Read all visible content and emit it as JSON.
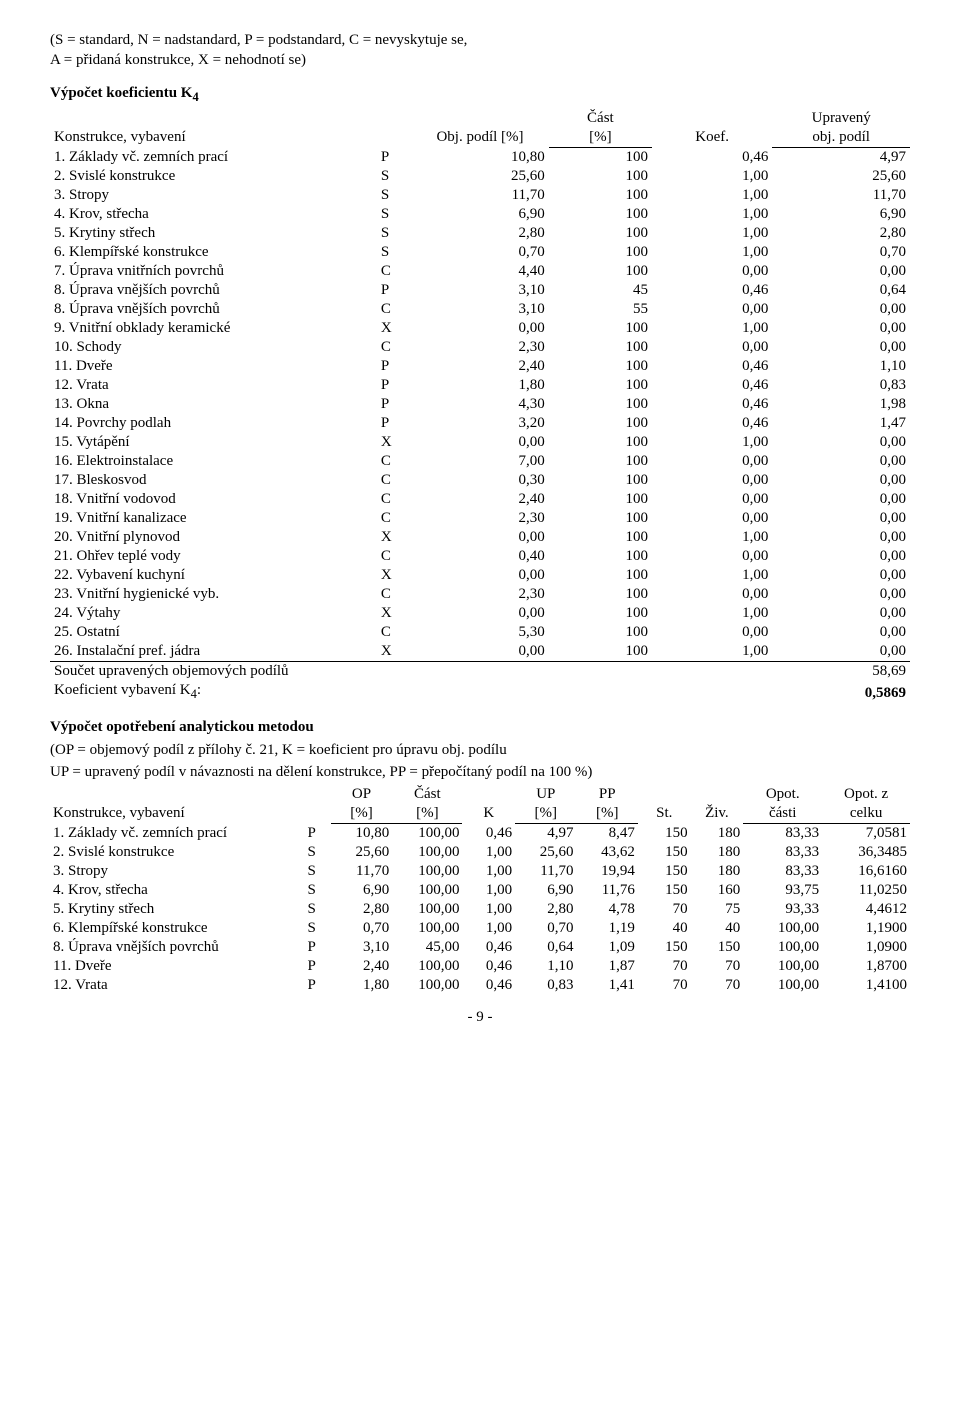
{
  "legend_line1": "(S = standard, N = nadstandard, P = podstandard, C = nevyskytuje se,",
  "legend_line2": "A = přidaná konstrukce, X = nehodnotí se)",
  "title1": "Výpočet koeficientu K",
  "title1_sub": "4",
  "t1_headers": {
    "c1": "Konstrukce, vybavení",
    "c2": "Obj. podíl [%]",
    "c3a": "Část",
    "c3b": "[%]",
    "c4": "Koef.",
    "c5a": "Upravený",
    "c5b": "obj. podíl"
  },
  "t1_rows": [
    {
      "name": "1. Základy vč. zemních prací",
      "code": "P",
      "op": "10,80",
      "cast": "100",
      "k": "0,46",
      "up": "4,97"
    },
    {
      "name": "2. Svislé konstrukce",
      "code": "S",
      "op": "25,60",
      "cast": "100",
      "k": "1,00",
      "up": "25,60"
    },
    {
      "name": "3. Stropy",
      "code": "S",
      "op": "11,70",
      "cast": "100",
      "k": "1,00",
      "up": "11,70"
    },
    {
      "name": "4. Krov, střecha",
      "code": "S",
      "op": "6,90",
      "cast": "100",
      "k": "1,00",
      "up": "6,90"
    },
    {
      "name": "5. Krytiny střech",
      "code": "S",
      "op": "2,80",
      "cast": "100",
      "k": "1,00",
      "up": "2,80"
    },
    {
      "name": "6. Klempířské konstrukce",
      "code": "S",
      "op": "0,70",
      "cast": "100",
      "k": "1,00",
      "up": "0,70"
    },
    {
      "name": "7. Úprava vnitřních povrchů",
      "code": "C",
      "op": "4,40",
      "cast": "100",
      "k": "0,00",
      "up": "0,00"
    },
    {
      "name": "8. Úprava vnějších povrchů",
      "code": "P",
      "op": "3,10",
      "cast": "45",
      "k": "0,46",
      "up": "0,64"
    },
    {
      "name": "8. Úprava vnějších povrchů",
      "code": "C",
      "op": "3,10",
      "cast": "55",
      "k": "0,00",
      "up": "0,00"
    },
    {
      "name": "9. Vnitřní obklady keramické",
      "code": "X",
      "op": "0,00",
      "cast": "100",
      "k": "1,00",
      "up": "0,00"
    },
    {
      "name": "10. Schody",
      "code": "C",
      "op": "2,30",
      "cast": "100",
      "k": "0,00",
      "up": "0,00"
    },
    {
      "name": "11. Dveře",
      "code": "P",
      "op": "2,40",
      "cast": "100",
      "k": "0,46",
      "up": "1,10"
    },
    {
      "name": "12. Vrata",
      "code": "P",
      "op": "1,80",
      "cast": "100",
      "k": "0,46",
      "up": "0,83"
    },
    {
      "name": "13. Okna",
      "code": "P",
      "op": "4,30",
      "cast": "100",
      "k": "0,46",
      "up": "1,98"
    },
    {
      "name": "14. Povrchy podlah",
      "code": "P",
      "op": "3,20",
      "cast": "100",
      "k": "0,46",
      "up": "1,47"
    },
    {
      "name": "15. Vytápění",
      "code": "X",
      "op": "0,00",
      "cast": "100",
      "k": "1,00",
      "up": "0,00"
    },
    {
      "name": "16. Elektroinstalace",
      "code": "C",
      "op": "7,00",
      "cast": "100",
      "k": "0,00",
      "up": "0,00"
    },
    {
      "name": "17. Bleskosvod",
      "code": "C",
      "op": "0,30",
      "cast": "100",
      "k": "0,00",
      "up": "0,00"
    },
    {
      "name": "18. Vnitřní vodovod",
      "code": "C",
      "op": "2,40",
      "cast": "100",
      "k": "0,00",
      "up": "0,00"
    },
    {
      "name": "19. Vnitřní kanalizace",
      "code": "C",
      "op": "2,30",
      "cast": "100",
      "k": "0,00",
      "up": "0,00"
    },
    {
      "name": "20. Vnitřní plynovod",
      "code": "X",
      "op": "0,00",
      "cast": "100",
      "k": "1,00",
      "up": "0,00"
    },
    {
      "name": "21. Ohřev teplé vody",
      "code": "C",
      "op": "0,40",
      "cast": "100",
      "k": "0,00",
      "up": "0,00"
    },
    {
      "name": "22. Vybavení kuchyní",
      "code": "X",
      "op": "0,00",
      "cast": "100",
      "k": "1,00",
      "up": "0,00"
    },
    {
      "name": "23. Vnitřní hygienické vyb.",
      "code": "C",
      "op": "2,30",
      "cast": "100",
      "k": "0,00",
      "up": "0,00"
    },
    {
      "name": "24. Výtahy",
      "code": "X",
      "op": "0,00",
      "cast": "100",
      "k": "1,00",
      "up": "0,00"
    },
    {
      "name": "25. Ostatní",
      "code": "C",
      "op": "5,30",
      "cast": "100",
      "k": "0,00",
      "up": "0,00"
    },
    {
      "name": "26. Instalační pref. jádra",
      "code": "X",
      "op": "0,00",
      "cast": "100",
      "k": "1,00",
      "up": "0,00"
    }
  ],
  "t1_sum_label": "Součet upravených objemových podílů",
  "t1_sum_val": "58,69",
  "t1_koef_label": "Koeficient vybavení K",
  "t1_koef_sub": "4",
  "t1_koef_colon": ":",
  "t1_koef_val": "0,5869",
  "title2": "Výpočet opotřebení analytickou metodou",
  "note2a": "(OP = objemový podíl z přílohy č. 21, K = koeficient pro úpravu obj. podílu",
  "note2b": "UP = upravený podíl v návaznosti na dělení konstrukce, PP = přepočítaný podíl na 100 %)",
  "t2_headers": {
    "c1": "Konstrukce, vybavení",
    "op1": "OP",
    "op2": "[%]",
    "cast1": "Část",
    "cast2": "[%]",
    "k": "K",
    "up1": "UP",
    "up2": "[%]",
    "pp1": "PP",
    "pp2": "[%]",
    "st": "St.",
    "ziv": "Živ.",
    "opot1": "Opot.",
    "opot2": "části",
    "opotz1": "Opot. z",
    "opotz2": "celku"
  },
  "t2_rows": [
    {
      "name": "1. Základy vč. zemních prací",
      "code": "P",
      "op": "10,80",
      "cast": "100,00",
      "k": "0,46",
      "up": "4,97",
      "pp": "8,47",
      "st": "150",
      "ziv": "180",
      "opot": "83,33",
      "opotz": "7,0581"
    },
    {
      "name": "2. Svislé konstrukce",
      "code": "S",
      "op": "25,60",
      "cast": "100,00",
      "k": "1,00",
      "up": "25,60",
      "pp": "43,62",
      "st": "150",
      "ziv": "180",
      "opot": "83,33",
      "opotz": "36,3485"
    },
    {
      "name": "3. Stropy",
      "code": "S",
      "op": "11,70",
      "cast": "100,00",
      "k": "1,00",
      "up": "11,70",
      "pp": "19,94",
      "st": "150",
      "ziv": "180",
      "opot": "83,33",
      "opotz": "16,6160"
    },
    {
      "name": "4. Krov, střecha",
      "code": "S",
      "op": "6,90",
      "cast": "100,00",
      "k": "1,00",
      "up": "6,90",
      "pp": "11,76",
      "st": "150",
      "ziv": "160",
      "opot": "93,75",
      "opotz": "11,0250"
    },
    {
      "name": "5. Krytiny střech",
      "code": "S",
      "op": "2,80",
      "cast": "100,00",
      "k": "1,00",
      "up": "2,80",
      "pp": "4,78",
      "st": "70",
      "ziv": "75",
      "opot": "93,33",
      "opotz": "4,4612"
    },
    {
      "name": "6. Klempířské konstrukce",
      "code": "S",
      "op": "0,70",
      "cast": "100,00",
      "k": "1,00",
      "up": "0,70",
      "pp": "1,19",
      "st": "40",
      "ziv": "40",
      "opot": "100,00",
      "opotz": "1,1900"
    },
    {
      "name": "8. Úprava vnějších povrchů",
      "code": "P",
      "op": "3,10",
      "cast": "45,00",
      "k": "0,46",
      "up": "0,64",
      "pp": "1,09",
      "st": "150",
      "ziv": "150",
      "opot": "100,00",
      "opotz": "1,0900"
    },
    {
      "name": "11. Dveře",
      "code": "P",
      "op": "2,40",
      "cast": "100,00",
      "k": "0,46",
      "up": "1,10",
      "pp": "1,87",
      "st": "70",
      "ziv": "70",
      "opot": "100,00",
      "opotz": "1,8700"
    },
    {
      "name": "12. Vrata",
      "code": "P",
      "op": "1,80",
      "cast": "100,00",
      "k": "0,46",
      "up": "0,83",
      "pp": "1,41",
      "st": "70",
      "ziv": "70",
      "opot": "100,00",
      "opotz": "1,4100"
    }
  ],
  "page_num": "- 9 -"
}
